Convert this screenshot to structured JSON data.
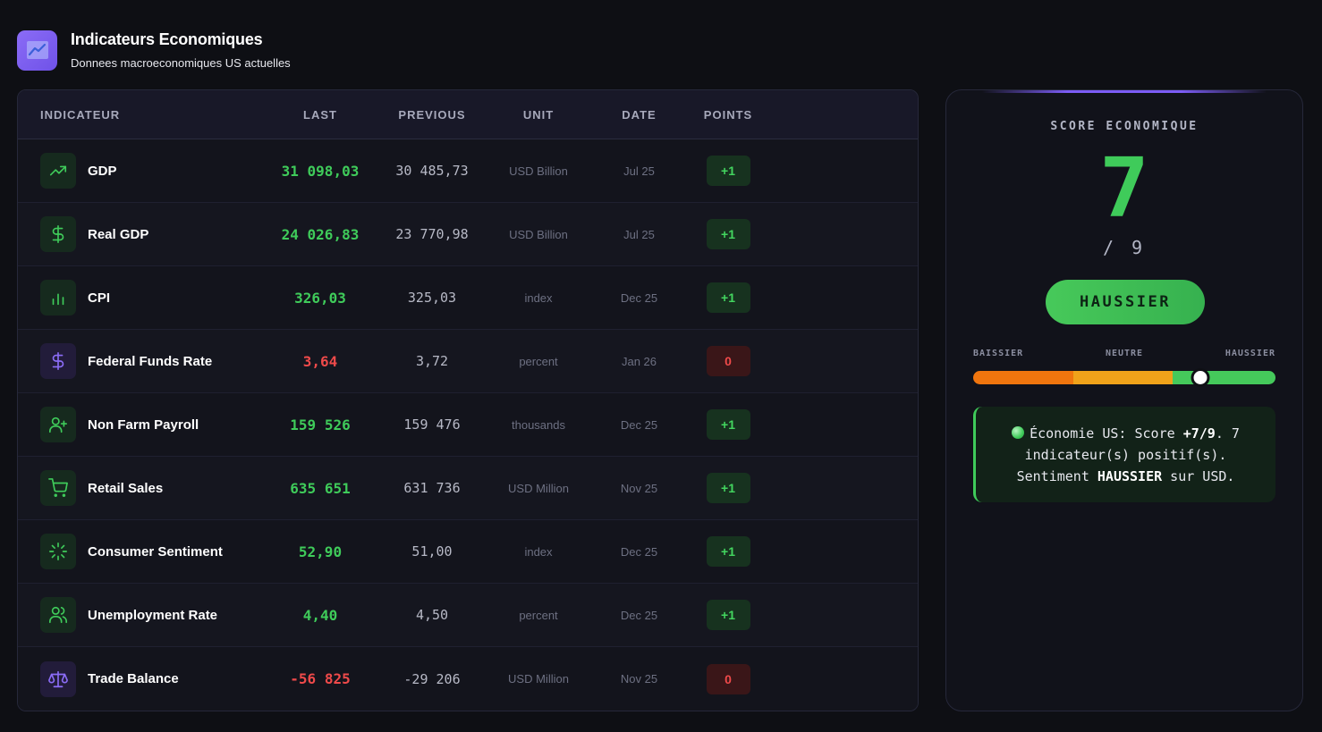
{
  "header": {
    "title": "Indicateurs Economiques",
    "subtitle": "Donnees macroeconomiques US actuelles",
    "icon": "chart-line-icon"
  },
  "table": {
    "columns": {
      "indicator": "INDICATEUR",
      "last": "LAST",
      "previous": "PREVIOUS",
      "unit": "UNIT",
      "date": "DATE",
      "points": "POINTS"
    },
    "rows": [
      {
        "name": "GDP",
        "last": "31 098,03",
        "previous": "30 485,73",
        "unit": "USD Billion",
        "date": "Jul 25",
        "points": "+1",
        "trend": "pos",
        "icon": "trending-up-icon",
        "icon_tone": "green"
      },
      {
        "name": "Real GDP",
        "last": "24 026,83",
        "previous": "23 770,98",
        "unit": "USD Billion",
        "date": "Jul 25",
        "points": "+1",
        "trend": "pos",
        "icon": "dollar-sign-icon",
        "icon_tone": "green"
      },
      {
        "name": "CPI",
        "last": "326,03",
        "previous": "325,03",
        "unit": "index",
        "date": "Dec 25",
        "points": "+1",
        "trend": "pos",
        "icon": "bar-chart-icon",
        "icon_tone": "green"
      },
      {
        "name": "Federal Funds Rate",
        "last": "3,64",
        "previous": "3,72",
        "unit": "percent",
        "date": "Jan 26",
        "points": "0",
        "trend": "neg",
        "icon": "dollar-sign-icon",
        "icon_tone": "purple"
      },
      {
        "name": "Non Farm Payroll",
        "last": "159 526",
        "previous": "159 476",
        "unit": "thousands",
        "date": "Dec 25",
        "points": "+1",
        "trend": "pos",
        "icon": "user-plus-icon",
        "icon_tone": "green"
      },
      {
        "name": "Retail Sales",
        "last": "635 651",
        "previous": "631 736",
        "unit": "USD Million",
        "date": "Nov 25",
        "points": "+1",
        "trend": "pos",
        "icon": "shopping-cart-icon",
        "icon_tone": "green"
      },
      {
        "name": "Consumer Sentiment",
        "last": "52,90",
        "previous": "51,00",
        "unit": "index",
        "date": "Dec 25",
        "points": "+1",
        "trend": "pos",
        "icon": "loader-icon",
        "icon_tone": "green"
      },
      {
        "name": "Unemployment Rate",
        "last": "4,40",
        "previous": "4,50",
        "unit": "percent",
        "date": "Dec 25",
        "points": "+1",
        "trend": "pos",
        "icon": "users-icon",
        "icon_tone": "green"
      },
      {
        "name": "Trade Balance",
        "last": "-56 825",
        "previous": "-29 206",
        "unit": "USD Million",
        "date": "Nov 25",
        "points": "0",
        "trend": "neg",
        "icon": "scale-icon",
        "icon_tone": "purple"
      }
    ]
  },
  "score": {
    "label": "SCORE ECONOMIQUE",
    "value": "7",
    "max": "/ 9",
    "verdict": "HAUSSIER",
    "gauge_labels": {
      "bearish": "BAISSIER",
      "neutral": "NEUTRE",
      "bullish": "HAUSSIER"
    },
    "gauge_position": 0.75,
    "summary": {
      "part1": "Économie US: Score ",
      "score_text": "+7/9",
      "part2": ". 7 indicateur(s) positif(s). Sentiment ",
      "sentiment": "HAUSSIER",
      "part3": " sur USD."
    }
  },
  "colors": {
    "positive": "#3fcb5a",
    "negative": "#ef4a4a",
    "accent": "#7c5cf6",
    "background": "#0e0f14"
  }
}
